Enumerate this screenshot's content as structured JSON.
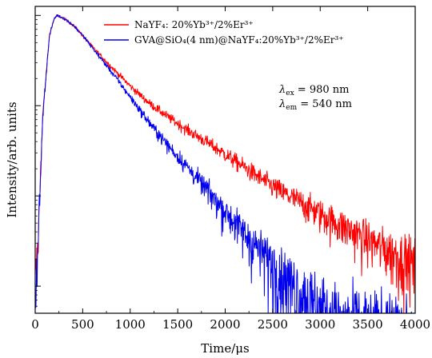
{
  "chart_data": {
    "type": "line",
    "xlabel": "Time/μs",
    "ylabel": "Intensity/arb. units",
    "xlim": [
      0,
      4000
    ],
    "ylim_decades": [
      -3.3,
      0.1
    ],
    "y_scale": "log",
    "x_ticks": [
      0,
      500,
      1000,
      1500,
      2000,
      2500,
      3000,
      3500,
      4000
    ],
    "x_tick_labels": [
      "0",
      "500",
      "1000",
      "1500",
      "2000",
      "2500",
      "3000",
      "3500",
      "4000"
    ],
    "y_tick_labels_shown": false,
    "legend_position": "top-right",
    "series": [
      {
        "name": "NaYF₄: 20%Yb³⁺/2%Er³⁺",
        "color": "#ff0000",
        "peak_time": 230,
        "x": [
          0,
          30,
          80,
          150,
          200,
          230,
          300,
          400,
          500,
          600,
          800,
          1000,
          1200,
          1400,
          1600,
          1800,
          2000,
          2200,
          2400,
          2600,
          2800,
          3000,
          3200,
          3400,
          3600,
          3800,
          4000
        ],
        "y": [
          0.001,
          0.003,
          0.08,
          0.6,
          0.92,
          1.0,
          0.93,
          0.78,
          0.6,
          0.45,
          0.27,
          0.165,
          0.107,
          0.075,
          0.054,
          0.04,
          0.029,
          0.021,
          0.015,
          0.011,
          0.0085,
          0.0064,
          0.0049,
          0.0038,
          0.0029,
          0.0023,
          0.0018
        ]
      },
      {
        "name": "GVA@SiO₄(4 nm)@NaYF₄:20%Yb³⁺/2%Er³⁺",
        "color": "#0000ee",
        "peak_time": 230,
        "x": [
          0,
          30,
          80,
          150,
          200,
          230,
          300,
          400,
          500,
          600,
          800,
          1000,
          1200,
          1400,
          1600,
          1800,
          2000,
          2200,
          2400,
          2600,
          2800,
          3000,
          3200,
          3400,
          3600,
          3800,
          4000
        ],
        "y": [
          0.001,
          0.003,
          0.08,
          0.6,
          0.92,
          1.0,
          0.93,
          0.78,
          0.6,
          0.44,
          0.24,
          0.125,
          0.065,
          0.036,
          0.021,
          0.012,
          0.0068,
          0.0039,
          0.0023,
          0.0014,
          0.00085,
          0.00055,
          0.0004,
          0.00032,
          0.00028,
          0.00025,
          0.00022
        ]
      }
    ],
    "annotations": [
      {
        "sym": "λ",
        "sub": "ex",
        "text": " = 980 nm"
      },
      {
        "sym": "λ",
        "sub": "em",
        "text": " = 540 nm"
      }
    ]
  }
}
